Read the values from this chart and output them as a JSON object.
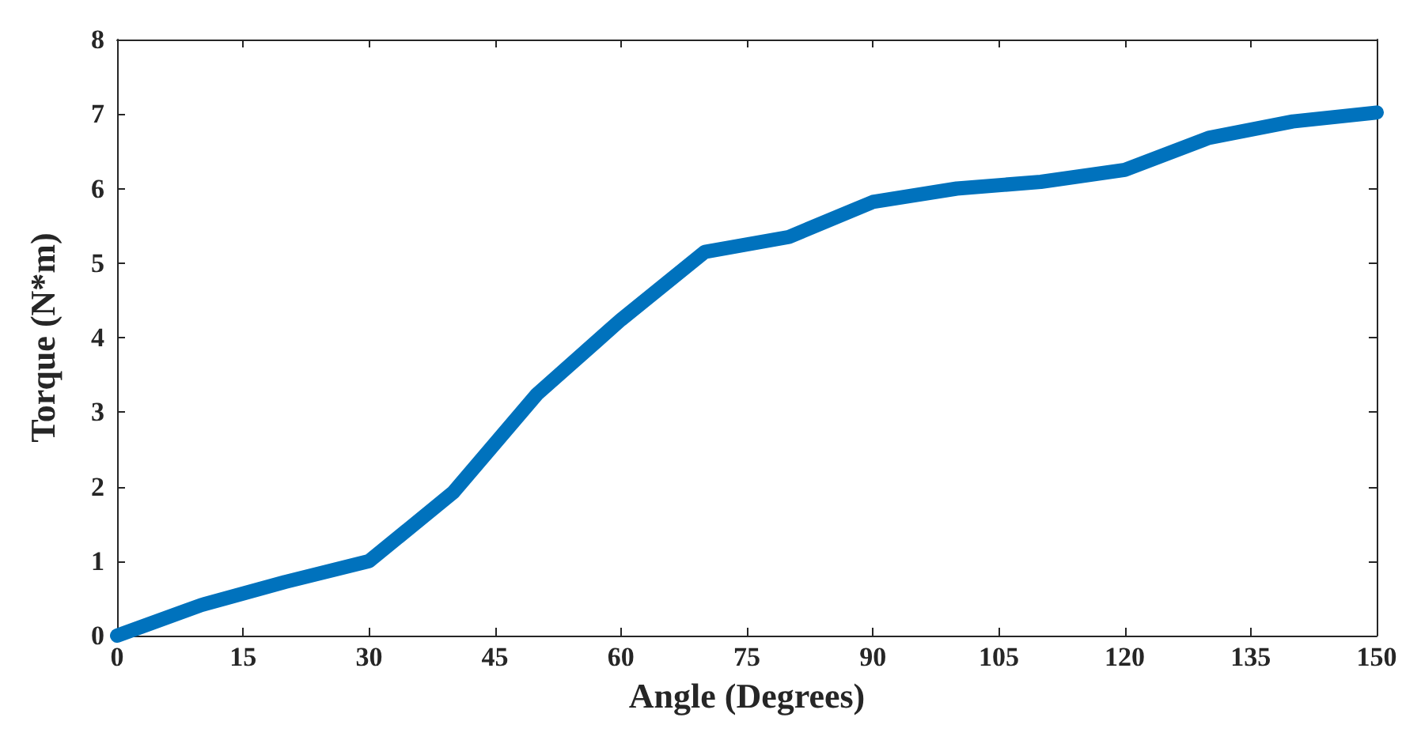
{
  "chart_data": {
    "type": "line",
    "xlabel": "Angle (Degrees)",
    "ylabel": "Torque (N*m)",
    "x": [
      0,
      10,
      20,
      30,
      40,
      50,
      60,
      70,
      80,
      90,
      100,
      110,
      120,
      130,
      140,
      150
    ],
    "series": [
      {
        "color": "#0072bd",
        "values": [
          0,
          0.41,
          0.72,
          1.0,
          1.92,
          3.24,
          4.24,
          5.15,
          5.35,
          5.82,
          6.0,
          6.09,
          6.25,
          6.68,
          6.9,
          7.02
        ]
      }
    ],
    "xlim": [
      0,
      150
    ],
    "xticks": [
      0,
      15,
      30,
      45,
      60,
      75,
      90,
      105,
      120,
      135,
      150
    ],
    "ylim": [
      0,
      8
    ],
    "yticks": [
      0,
      1,
      2,
      3,
      4,
      5,
      6,
      7,
      8
    ],
    "grid": false,
    "line_style": "solid"
  }
}
